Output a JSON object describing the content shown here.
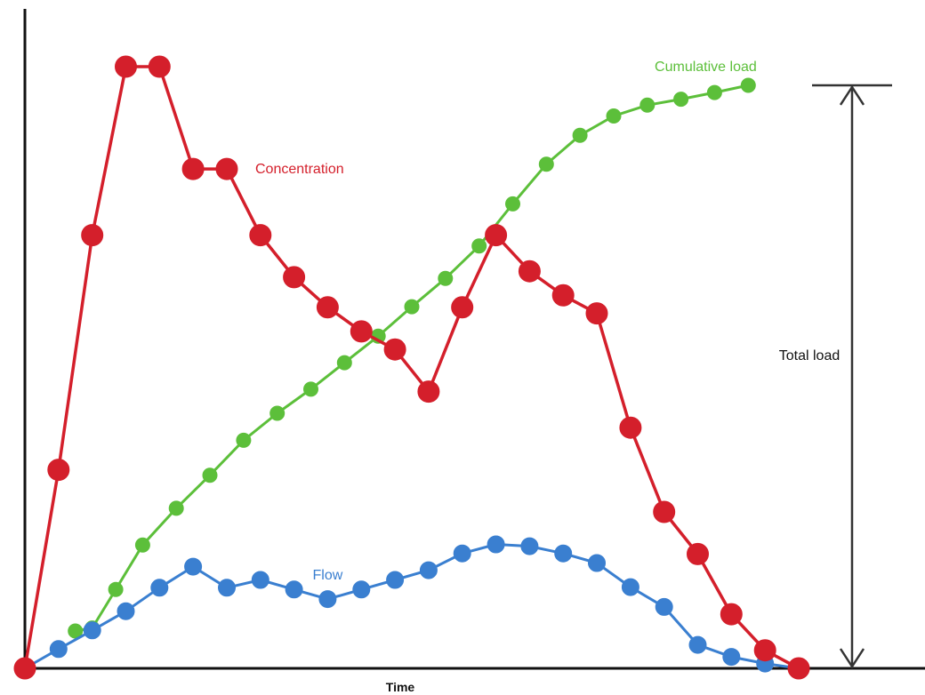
{
  "chart_data": {
    "type": "line",
    "title": "",
    "xlabel": "Time",
    "ylabel": "",
    "grid": false,
    "legend": "none",
    "x_range": [
      0,
      23
    ],
    "y_range": [
      0,
      100
    ],
    "series": [
      {
        "name": "Concentration",
        "color": "#d41f2b",
        "x": [
          0,
          1,
          2,
          3,
          4,
          5,
          6,
          7,
          8,
          9,
          10,
          11,
          12,
          13,
          14,
          15,
          16,
          17,
          18,
          19,
          20,
          21,
          22,
          23
        ],
        "values": [
          0,
          33,
          72,
          100,
          100,
          83,
          83,
          72,
          65,
          60,
          56,
          53,
          46,
          60,
          72,
          66,
          62,
          59,
          40,
          26,
          19,
          9,
          3,
          0
        ]
      },
      {
        "name": "Flow",
        "color": "#3a7fd0",
        "x": [
          0,
          1,
          2,
          3,
          4,
          5,
          6,
          7,
          8,
          9,
          10,
          11,
          12,
          13,
          14,
          15,
          16,
          17,
          18,
          19,
          20,
          21,
          22,
          23
        ],
        "values": [
          0,
          3.2,
          6.3,
          9.5,
          13.4,
          16.9,
          13.4,
          14.7,
          13.1,
          11.5,
          13.1,
          14.7,
          16.3,
          19.1,
          20.6,
          20.3,
          19.1,
          17.5,
          13.5,
          10.2,
          3.9,
          1.9,
          0.8,
          0
        ]
      },
      {
        "name": "Cumulative load",
        "color": "#5cbf3a",
        "x": [
          1.5,
          2,
          2.7,
          3.5,
          4.5,
          5.5,
          6.5,
          7.5,
          8.5,
          9.5,
          10.5,
          11.5,
          12.5,
          13.5,
          14.5,
          15.5,
          16.5,
          17.5,
          18.5,
          19.5,
          20.5,
          21.5
        ],
        "values": [
          6.2,
          6.7,
          13.1,
          20.5,
          26.6,
          32.1,
          37.9,
          42.4,
          46.4,
          50.8,
          55.2,
          60.1,
          64.8,
          70.2,
          77.2,
          83.8,
          88.6,
          91.8,
          93.6,
          94.6,
          95.7,
          96.9
        ]
      }
    ],
    "annotations": [
      {
        "name": "Total load",
        "text": "Total load",
        "type": "double-arrow",
        "from": 0,
        "to": 96.9
      }
    ]
  }
}
